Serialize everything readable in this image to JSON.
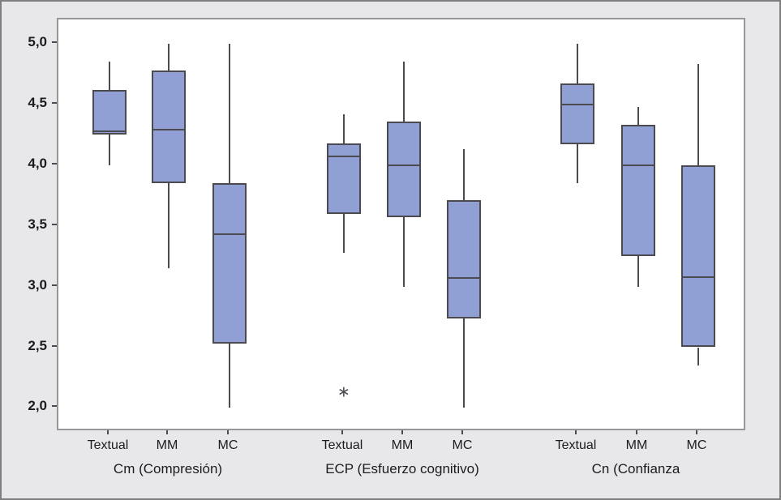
{
  "window": {
    "background": "#e8e8ea",
    "frame_border_color": "#7f7f7f"
  },
  "chart_data": {
    "type": "boxplot",
    "title": "",
    "xlabel": "",
    "ylabel": "",
    "grid": false,
    "legend": false,
    "plot_background": "#ffffff",
    "plot_border_color": "#979797",
    "box_fill": "#90a0d4",
    "box_stroke": "#4a4a50",
    "text_color": "#1c1c20",
    "outlier_symbol": "∗",
    "y_axis": {
      "min": 2.0,
      "max": 5.0,
      "tick_step": 0.5,
      "decimal_separator": ",",
      "tick_values": [
        5.0,
        4.5,
        4.0,
        3.5,
        3.0,
        2.5,
        2.0
      ],
      "tick_labels": [
        "5,0",
        "4,5",
        "4,0",
        "3,5",
        "3,0",
        "2,5",
        "2,0"
      ]
    },
    "groups": [
      {
        "label": "Cm (Compresión)",
        "boxes": [
          {
            "category": "Textual",
            "whisker_low": 4.0,
            "q1": 4.25,
            "median": 4.28,
            "q3": 4.62,
            "whisker_high": 4.85,
            "outliers": []
          },
          {
            "category": "MM",
            "whisker_low": 3.15,
            "q1": 3.85,
            "median": 4.29,
            "q3": 4.78,
            "whisker_high": 5.0,
            "outliers": []
          },
          {
            "category": "MC",
            "whisker_low": 2.0,
            "q1": 2.53,
            "median": 3.43,
            "q3": 3.85,
            "whisker_high": 5.0,
            "outliers": []
          }
        ]
      },
      {
        "label": "ECP (Esfuerzo cognitivo)",
        "boxes": [
          {
            "category": "Textual",
            "whisker_low": 3.28,
            "q1": 3.6,
            "median": 4.07,
            "q3": 4.18,
            "whisker_high": 4.42,
            "outliers": [
              2.13
            ]
          },
          {
            "category": "MM",
            "whisker_low": 3.0,
            "q1": 3.57,
            "median": 4.0,
            "q3": 4.36,
            "whisker_high": 4.85,
            "outliers": []
          },
          {
            "category": "MC",
            "whisker_low": 2.0,
            "q1": 2.74,
            "median": 3.07,
            "q3": 3.71,
            "whisker_high": 4.13,
            "outliers": []
          }
        ]
      },
      {
        "label": "Cn (Confianza",
        "boxes": [
          {
            "category": "Textual",
            "whisker_low": 3.85,
            "q1": 4.17,
            "median": 4.5,
            "q3": 4.67,
            "whisker_high": 5.0,
            "outliers": []
          },
          {
            "category": "MM",
            "whisker_low": 3.0,
            "q1": 3.25,
            "median": 4.0,
            "q3": 4.33,
            "whisker_high": 4.48,
            "outliers": []
          },
          {
            "category": "MC",
            "whisker_low": 2.35,
            "q1": 2.5,
            "median": 3.08,
            "q3": 4.0,
            "whisker_high": 4.83,
            "outliers": []
          }
        ]
      }
    ]
  }
}
